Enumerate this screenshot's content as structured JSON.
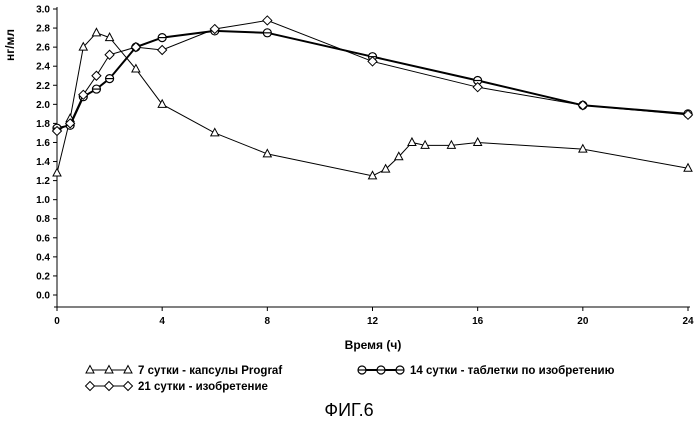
{
  "chart_data": {
    "type": "line",
    "title": "",
    "xlabel": "Время (ч)",
    "ylabel": "нг/мл",
    "xlim": [
      0,
      24
    ],
    "ylim": [
      0,
      3.0
    ],
    "x_ticks": [
      0,
      4,
      8,
      12,
      16,
      20,
      24
    ],
    "y_ticks": [
      "0.0",
      "0.2",
      "0.4",
      "0.6",
      "0.8",
      "1.0",
      "1.2",
      "1.4",
      "1.6",
      "1.8",
      "2.0",
      "2.2",
      "2.4",
      "2.6",
      "2.8",
      "3.0"
    ],
    "grid": false,
    "legend_position": "bottom",
    "series": [
      {
        "name": "7 сутки - капсулы Prograf",
        "marker": "triangle",
        "line_width": 1,
        "x": [
          0,
          0.5,
          1,
          1.5,
          2,
          3,
          4,
          6,
          8,
          12,
          12.5,
          13,
          13.5,
          14,
          15,
          16,
          20,
          24
        ],
        "y": [
          1.28,
          1.85,
          2.6,
          2.75,
          2.7,
          2.37,
          2.0,
          1.7,
          1.48,
          1.25,
          1.32,
          1.45,
          1.6,
          1.57,
          1.57,
          1.6,
          1.53,
          1.33
        ]
      },
      {
        "name": "14 сутки - таблетки по изобретению",
        "marker": "circle",
        "line_width": 2,
        "x": [
          0,
          0.5,
          1,
          1.5,
          2,
          3,
          4,
          6,
          8,
          12,
          16,
          20,
          24
        ],
        "y": [
          1.75,
          1.78,
          2.08,
          2.16,
          2.27,
          2.6,
          2.7,
          2.77,
          2.75,
          2.5,
          2.25,
          1.99,
          1.9
        ]
      },
      {
        "name": "21 сутки - изобретение",
        "marker": "diamond",
        "line_width": 1,
        "x": [
          0,
          0.5,
          1,
          1.5,
          2,
          3,
          4,
          6,
          8,
          12,
          16,
          20,
          24
        ],
        "y": [
          1.72,
          1.8,
          2.1,
          2.3,
          2.52,
          2.6,
          2.57,
          2.79,
          2.88,
          2.45,
          2.18,
          1.99,
          1.89
        ]
      }
    ]
  },
  "figure": {
    "caption": "ФИГ.6"
  }
}
